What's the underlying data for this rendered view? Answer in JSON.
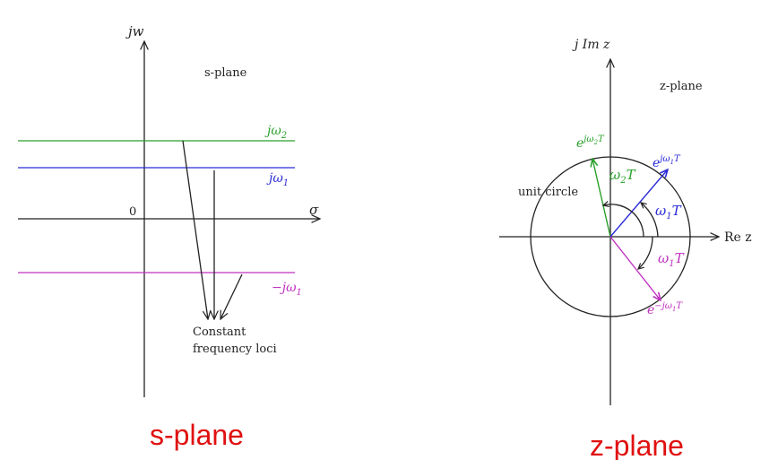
{
  "s_plane": {
    "axis_vertical_label": "jw",
    "axis_horizontal_label": "σ",
    "origin_label": "0",
    "plane_label": "s-plane",
    "line_top_label": {
      "base": "jω",
      "sub": "2"
    },
    "line_mid_label": {
      "base": "jω",
      "sub": "1"
    },
    "line_bottom_label": {
      "base": "−jω",
      "sub": "1"
    },
    "loci_label_line1": "Constant",
    "loci_label_line2": "frequency loci",
    "caption": "s-plane"
  },
  "z_plane": {
    "axis_vertical_label": "j Im z",
    "axis_horizontal_label": "Re z",
    "plane_label": "z-plane",
    "circle_label": "unit circle",
    "vec_w2_label": {
      "base": "e",
      "sup": "jω",
      "supsub": "2",
      "supend": "T"
    },
    "vec_w1_label": {
      "base": "e",
      "sup": "jω",
      "supsub": "1",
      "supend": "T"
    },
    "vec_neg_w1_label": {
      "base": "e",
      "sup": "−jω",
      "supsub": "1",
      "supend": "T"
    },
    "angle_w2_label": {
      "base": "ω",
      "sub": "2",
      "end": "T"
    },
    "angle_w1_label": {
      "base": "ω",
      "sub": "1",
      "end": "T"
    },
    "angle_neg_w1_label": {
      "base": "ω",
      "sub": "1",
      "end": "T"
    },
    "caption": "z-plane"
  },
  "colors": {
    "green": "#2aa02a",
    "blue": "#2a2ad8",
    "magenta": "#c030c0",
    "axis": "#222222",
    "caption": "#e01010"
  }
}
